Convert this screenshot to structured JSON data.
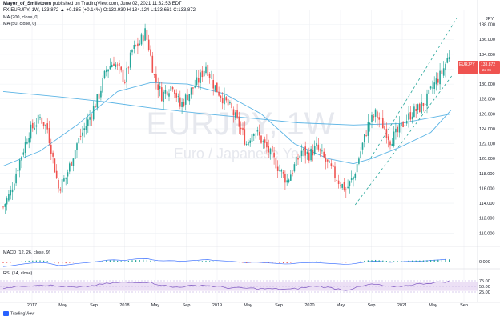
{
  "header": {
    "author": "Mayor_of_Smiletown",
    "published": "published on TradingView.com, June 02, 2021 11:32:53 EDT",
    "symbol_line": "FX:EURJPY, 1W, 133.872 ▲ +0.185 (+0.14%) O:133.930 H:134.124 L:133.661 C:133.872"
  },
  "indicators": {
    "ma200": "MA (200, close, 0)",
    "ma50": "MA (50, close, 0)",
    "macd": "MACD (12, 26, close, 9)",
    "rsi": "RSI (14, close)"
  },
  "watermark": {
    "symbol": "EURJPY, 1W",
    "name": "Euro / Japanese Yen"
  },
  "price_tag": {
    "symbol": "EURJPY",
    "price": "133.872",
    "countdown": "2d 0h"
  },
  "currency_label": "JPY",
  "footer": {
    "brand": "TradingView"
  },
  "colors": {
    "up": "#26a69a",
    "down": "#ef5350",
    "ma": "#5bb4e5",
    "channel": "#26a69a",
    "rsi_band": "#ece0f5",
    "rsi_line": "#7e57c2",
    "grid": "#eef0f4"
  },
  "chart_data": {
    "type": "candlestick",
    "price_axis": {
      "ticks": [
        "138.000",
        "136.000",
        "134.000",
        "132.000",
        "130.000",
        "128.000",
        "126.000",
        "124.000",
        "122.000",
        "120.000",
        "118.000",
        "116.000",
        "114.000",
        "112.000",
        "110.000"
      ],
      "range": [
        109.5,
        140.0
      ]
    },
    "time_axis": [
      "2017",
      "May",
      "Sep",
      "2018",
      "May",
      "Sep",
      "2019",
      "May",
      "Sep",
      "2020",
      "May",
      "Sep",
      "2021",
      "May",
      "Sep"
    ],
    "close_path": [
      [
        0,
        113.5
      ],
      [
        4,
        115.5
      ],
      [
        8,
        119
      ],
      [
        14,
        123.5
      ],
      [
        20,
        125.5
      ],
      [
        24,
        124
      ],
      [
        30,
        116
      ],
      [
        34,
        117.5
      ],
      [
        40,
        122
      ],
      [
        46,
        125
      ],
      [
        52,
        128.5
      ],
      [
        56,
        132
      ],
      [
        60,
        133
      ],
      [
        66,
        130.5
      ],
      [
        70,
        134.5
      ],
      [
        74,
        135.5
      ],
      [
        77,
        137
      ],
      [
        79,
        135
      ],
      [
        82,
        131
      ],
      [
        86,
        128.5
      ],
      [
        92,
        130
      ],
      [
        96,
        127
      ],
      [
        100,
        128.5
      ],
      [
        106,
        130.5
      ],
      [
        110,
        132.5
      ],
      [
        114,
        130
      ],
      [
        118,
        128.5
      ],
      [
        124,
        126.5
      ],
      [
        128,
        124.5
      ],
      [
        132,
        122
      ],
      [
        136,
        124
      ],
      [
        140,
        122.5
      ],
      [
        144,
        121
      ],
      [
        150,
        118.5
      ],
      [
        154,
        117
      ],
      [
        158,
        119
      ],
      [
        162,
        121
      ],
      [
        166,
        120.5
      ],
      [
        170,
        121.5
      ],
      [
        174,
        120
      ],
      [
        178,
        118.5
      ],
      [
        182,
        117
      ],
      [
        186,
        115.8
      ],
      [
        190,
        117.5
      ],
      [
        194,
        121
      ],
      [
        198,
        124.5
      ],
      [
        202,
        126
      ],
      [
        206,
        124.5
      ],
      [
        210,
        122.5
      ],
      [
        214,
        123.5
      ],
      [
        218,
        125
      ],
      [
        222,
        126.2
      ],
      [
        226,
        126.8
      ],
      [
        230,
        128
      ],
      [
        234,
        130
      ],
      [
        238,
        131.5
      ],
      [
        242,
        134
      ]
    ],
    "ma200": [
      [
        0,
        129
      ],
      [
        30,
        128.3
      ],
      [
        56,
        127.6
      ],
      [
        80,
        126.8
      ],
      [
        110,
        126
      ],
      [
        140,
        125.3
      ],
      [
        160,
        124.8
      ],
      [
        190,
        124.5
      ],
      [
        215,
        124.7
      ],
      [
        243,
        126
      ]
    ],
    "ma50": [
      [
        0,
        119
      ],
      [
        20,
        121
      ],
      [
        40,
        124.5
      ],
      [
        62,
        129
      ],
      [
        80,
        130.2
      ],
      [
        100,
        130
      ],
      [
        120,
        128.7
      ],
      [
        140,
        126
      ],
      [
        158,
        122
      ],
      [
        176,
        120
      ],
      [
        190,
        119.3
      ],
      [
        200,
        120
      ],
      [
        215,
        121.5
      ],
      [
        232,
        123.5
      ],
      [
        243,
        126.5
      ]
    ],
    "channel_upper": [
      [
        198,
        119.5
      ],
      [
        246,
        138.8
      ]
    ],
    "channel_lower": [
      [
        191,
        113.8
      ],
      [
        244,
        131.3
      ]
    ],
    "macd_axis": [
      "0.000"
    ],
    "rsi_axis": [
      "75.00",
      "50.00",
      "25.00"
    ],
    "rsi_band": [
      30,
      70
    ],
    "rsi": [
      [
        0,
        44
      ],
      [
        20,
        58
      ],
      [
        40,
        44
      ],
      [
        60,
        66
      ],
      [
        78,
        70
      ],
      [
        92,
        46
      ],
      [
        108,
        56
      ],
      [
        122,
        44
      ],
      [
        140,
        40
      ],
      [
        156,
        37
      ],
      [
        170,
        52
      ],
      [
        186,
        34
      ],
      [
        200,
        60
      ],
      [
        212,
        46
      ],
      [
        224,
        60
      ],
      [
        243,
        73
      ]
    ]
  }
}
